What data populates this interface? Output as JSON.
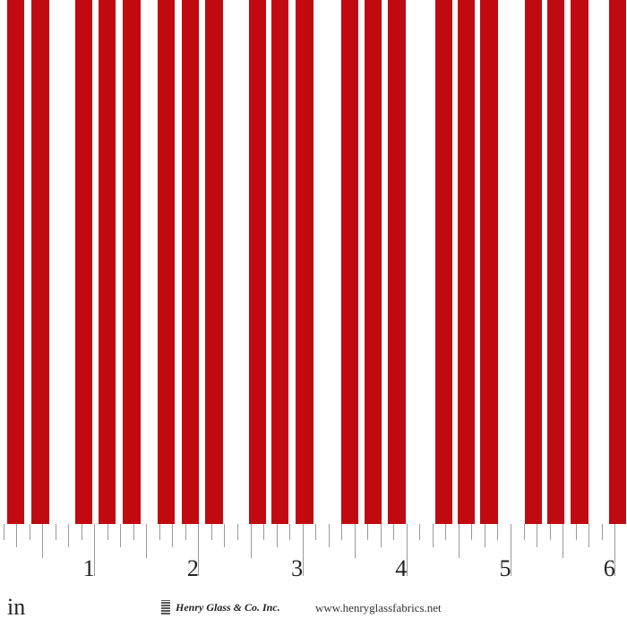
{
  "fabric": {
    "pattern": "vertical rough stripes",
    "stripe_color": "#c10a10",
    "background_color": "#ffffff"
  },
  "ruler": {
    "unit": "in",
    "labels": [
      "1",
      "2",
      "3",
      "4",
      "5",
      "6"
    ],
    "subdivisions_per_inch": 8
  },
  "footer": {
    "brand": "Henry Glass & Co. Inc.",
    "website": "www.henryglassfabrics.net"
  }
}
